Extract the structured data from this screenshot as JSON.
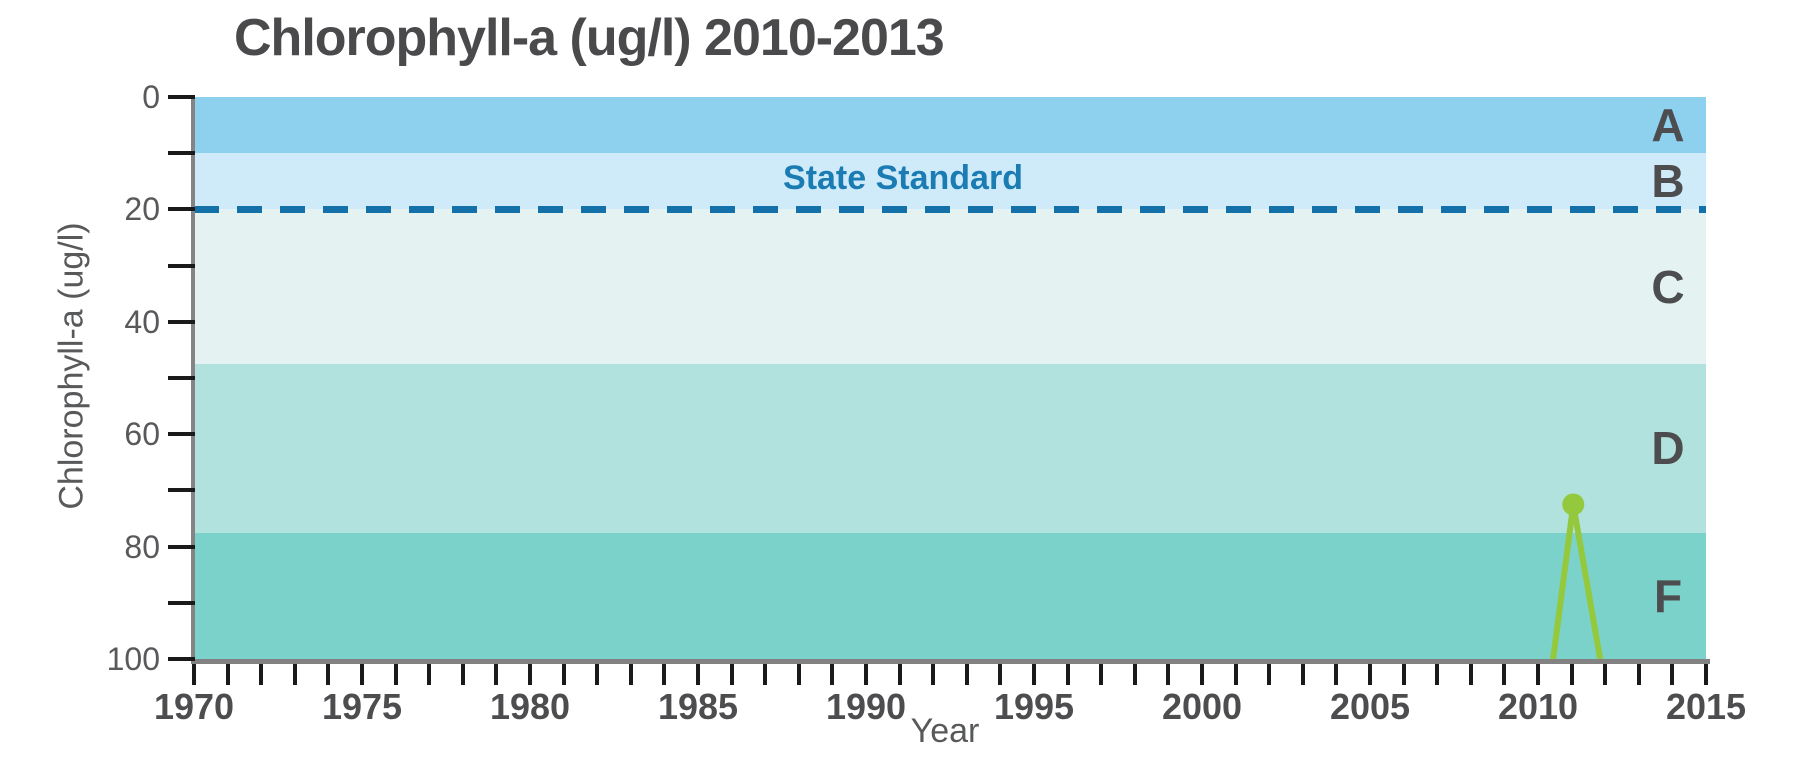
{
  "canvas": {
    "background": "#ffffff"
  },
  "chart_data": {
    "type": "line",
    "title": "Chlorophyll-a (ug/l) 2010-2013",
    "xlabel": "Year",
    "ylabel": "Chlorophyll-a (ug/l)",
    "x_range": [
      1970,
      2015
    ],
    "x_minor_tick_step": 1,
    "x_label_step": 5,
    "x_tick_labels": [
      "1970",
      "1975",
      "1980",
      "1985",
      "1990",
      "1995",
      "2000",
      "2005",
      "2010",
      "2015"
    ],
    "y_range": [
      0,
      100
    ],
    "y_inverted": true,
    "y_minor_tick_step": 10,
    "y_label_step": 20,
    "y_tick_labels": [
      "0",
      "20",
      "40",
      "60",
      "80",
      "100"
    ],
    "grid": false,
    "legend": "none",
    "grade_bands": [
      {
        "label": "A",
        "from": 0,
        "to": 10,
        "color": "#8ed1ef"
      },
      {
        "label": "B",
        "from": 10,
        "to": 20,
        "color": "#cfeaf8"
      },
      {
        "label": "C",
        "from": 20,
        "to": 47.5,
        "color": "#e4f3f1"
      },
      {
        "label": "D",
        "from": 47.5,
        "to": 77.5,
        "color": "#b2e2dd"
      },
      {
        "label": "F",
        "from": 77.5,
        "to": 100,
        "color": "#7bd2cb"
      }
    ],
    "reference_line": {
      "label": "State Standard",
      "value": 20,
      "style": "dashed",
      "color": "#1470a8",
      "label_color": "#1b7cb4"
    },
    "series": [
      {
        "name": "Chlorophyll-a",
        "color": "#94c83d",
        "points": [
          {
            "x": 2010.45,
            "y": 100
          },
          {
            "x": 2011.05,
            "y": 72.5
          },
          {
            "x": 2011.85,
            "y": 100
          }
        ],
        "markers": [
          {
            "x": 2011.05,
            "y": 72.5
          }
        ]
      }
    ],
    "colors": {
      "axis": "#828282",
      "tick": "#1a1a1a",
      "title_text": "#4a4a4c",
      "band_label_text": "#4d4d4f",
      "muted_text": "#58595b"
    }
  }
}
